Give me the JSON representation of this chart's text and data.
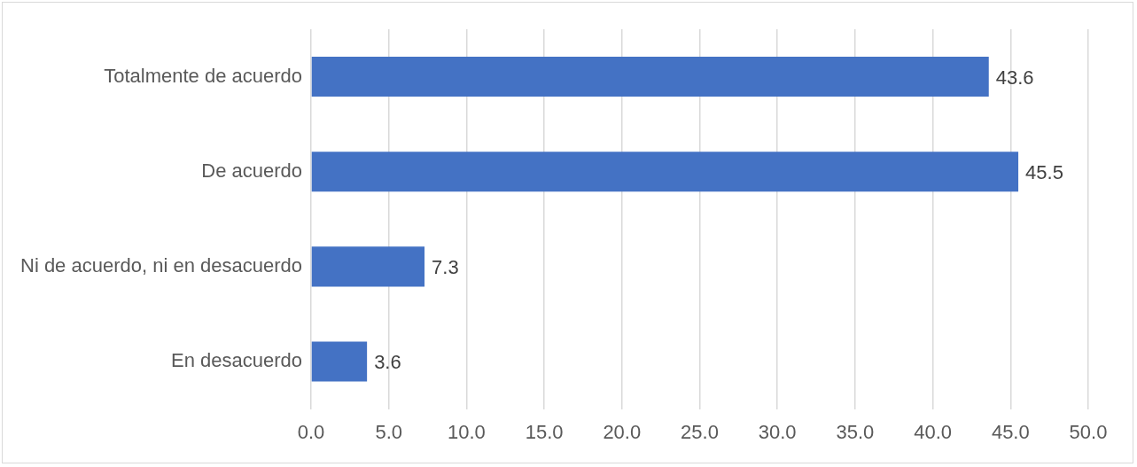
{
  "chart_data": {
    "type": "bar",
    "orientation": "horizontal",
    "categories": [
      "Totalmente de acuerdo",
      "De acuerdo",
      "Ni de acuerdo, ni en desacuerdo",
      "En desacuerdo"
    ],
    "values": [
      43.6,
      45.5,
      7.3,
      3.6
    ],
    "color": "#4472c4",
    "xlim": [
      0,
      50
    ],
    "xticks": [
      {
        "value": 0,
        "label": "0.0"
      },
      {
        "value": 5,
        "label": "5.0"
      },
      {
        "value": 10,
        "label": "10.0"
      },
      {
        "value": 15,
        "label": "15.0"
      },
      {
        "value": 20,
        "label": "20.0"
      },
      {
        "value": 25,
        "label": "25.0"
      },
      {
        "value": 30,
        "label": "30.0"
      },
      {
        "value": 35,
        "label": "35.0"
      },
      {
        "value": 40,
        "label": "40.0"
      },
      {
        "value": 45,
        "label": "45.0"
      },
      {
        "value": 50,
        "label": "50.0"
      }
    ],
    "grid": "x",
    "data_labels": true
  }
}
